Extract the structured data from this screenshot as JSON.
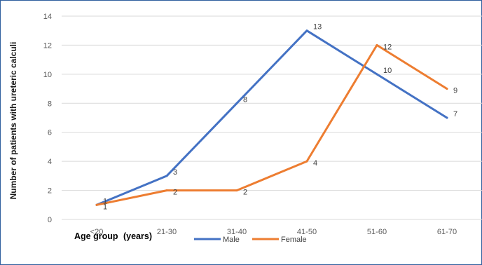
{
  "chart_data": {
    "type": "line",
    "categories": [
      "<20",
      "21-30",
      "31-40",
      "41-50",
      "51-60",
      "61-70"
    ],
    "series": [
      {
        "name": "Male",
        "values": [
          1,
          3,
          8,
          13,
          10,
          7
        ],
        "color": "#4472c4"
      },
      {
        "name": "Female",
        "values": [
          1,
          2,
          2,
          4,
          12,
          9
        ],
        "color": "#ed7d31"
      }
    ],
    "ylabel": "Number of patients with ureteric calculi",
    "xlabel_main": "Age group",
    "xlabel_unit": "(years)",
    "ylim": [
      0,
      14
    ],
    "yticks": [
      0,
      2,
      4,
      6,
      8,
      10,
      12,
      14
    ],
    "grid": true,
    "legend": "bottom",
    "data_labels": true
  }
}
